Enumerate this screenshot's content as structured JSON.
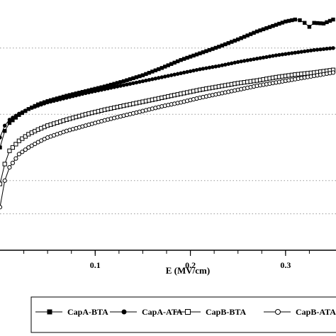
{
  "chart_data": {
    "type": "line",
    "title": "",
    "xlabel": "E (MV/cm)",
    "ylabel": "",
    "xlim": [
      0,
      0.35
    ],
    "x_ticks": [
      0.1,
      0.2,
      0.3
    ],
    "x_tick_labels": [
      "0.1",
      "0.2",
      "0.3"
    ],
    "grid": "horizontal dotted",
    "legend_position": "bottom",
    "series": [
      {
        "name": "CapA-BTA",
        "marker": "filled-square",
        "x": [
          0.0,
          0.005,
          0.01,
          0.02,
          0.03,
          0.04,
          0.05,
          0.07,
          0.09,
          0.11,
          0.13,
          0.15,
          0.17,
          0.19,
          0.21,
          0.23,
          0.25,
          0.27,
          0.28,
          0.29,
          0.3,
          0.31,
          0.315,
          0.32,
          0.325,
          0.33,
          0.34,
          0.35
        ],
        "y": [
          1.55,
          1.8,
          1.92,
          2.04,
          2.13,
          2.2,
          2.25,
          2.33,
          2.4,
          2.47,
          2.55,
          2.64,
          2.75,
          2.87,
          2.97,
          3.07,
          3.18,
          3.3,
          3.35,
          3.4,
          3.45,
          3.48,
          3.47,
          3.43,
          3.37,
          3.43,
          3.42,
          3.48
        ]
      },
      {
        "name": "CapA-ATA",
        "marker": "filled-circle",
        "x": [
          0.0,
          0.005,
          0.01,
          0.02,
          0.03,
          0.04,
          0.05,
          0.07,
          0.09,
          0.11,
          0.13,
          0.15,
          0.17,
          0.19,
          0.21,
          0.23,
          0.25,
          0.27,
          0.29,
          0.31,
          0.33,
          0.35
        ],
        "y": [
          1.7,
          1.88,
          1.97,
          2.06,
          2.13,
          2.18,
          2.23,
          2.3,
          2.37,
          2.43,
          2.49,
          2.55,
          2.61,
          2.67,
          2.73,
          2.78,
          2.84,
          2.89,
          2.94,
          2.98,
          3.02,
          3.05
        ]
      },
      {
        "name": "CapB-BTA",
        "marker": "open-square",
        "x": [
          0.0,
          0.005,
          0.01,
          0.02,
          0.03,
          0.04,
          0.05,
          0.07,
          0.09,
          0.11,
          0.13,
          0.15,
          0.17,
          0.19,
          0.21,
          0.23,
          0.25,
          0.27,
          0.29,
          0.31,
          0.33,
          0.35
        ],
        "y": [
          1.0,
          1.3,
          1.5,
          1.65,
          1.75,
          1.82,
          1.88,
          1.97,
          2.05,
          2.12,
          2.18,
          2.24,
          2.3,
          2.36,
          2.42,
          2.47,
          2.52,
          2.56,
          2.61,
          2.65,
          2.68,
          2.72
        ]
      },
      {
        "name": "CapB-ATA",
        "marker": "open-circle",
        "x": [
          0.0,
          0.005,
          0.01,
          0.02,
          0.03,
          0.04,
          0.05,
          0.07,
          0.09,
          0.11,
          0.13,
          0.15,
          0.17,
          0.19,
          0.21,
          0.23,
          0.25,
          0.27,
          0.29,
          0.31,
          0.33,
          0.35
        ],
        "y": [
          0.65,
          1.05,
          1.25,
          1.45,
          1.55,
          1.63,
          1.7,
          1.8,
          1.88,
          1.96,
          2.03,
          2.1,
          2.17,
          2.23,
          2.3,
          2.36,
          2.42,
          2.48,
          2.53,
          2.58,
          2.63,
          2.68
        ]
      }
    ]
  },
  "colors": {
    "series": "#000000",
    "grid": "#999999",
    "axis": "#000000"
  }
}
